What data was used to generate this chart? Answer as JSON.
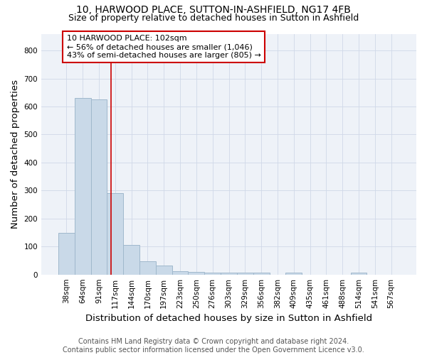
{
  "title1": "10, HARWOOD PLACE, SUTTON-IN-ASHFIELD, NG17 4FB",
  "title2": "Size of property relative to detached houses in Sutton in Ashfield",
  "xlabel": "Distribution of detached houses by size in Sutton in Ashfield",
  "ylabel": "Number of detached properties",
  "footnote": "Contains HM Land Registry data © Crown copyright and database right 2024.\nContains public sector information licensed under the Open Government Licence v3.0.",
  "categories": [
    "38sqm",
    "64sqm",
    "91sqm",
    "117sqm",
    "144sqm",
    "170sqm",
    "197sqm",
    "223sqm",
    "250sqm",
    "276sqm",
    "303sqm",
    "329sqm",
    "356sqm",
    "382sqm",
    "409sqm",
    "435sqm",
    "461sqm",
    "488sqm",
    "514sqm",
    "541sqm",
    "567sqm"
  ],
  "values": [
    148,
    630,
    625,
    290,
    105,
    47,
    32,
    11,
    10,
    8,
    8,
    8,
    6,
    0,
    7,
    0,
    0,
    0,
    8,
    0,
    0
  ],
  "bar_color": "#c9d9e8",
  "bar_edge_color": "#a0b8cc",
  "red_line_x": 2.73,
  "annotation_line1": "10 HARWOOD PLACE: 102sqm",
  "annotation_line2": "← 56% of detached houses are smaller (1,046)",
  "annotation_line3": "43% of semi-detached houses are larger (805) →",
  "annotation_box_color": "#ffffff",
  "annotation_box_edge": "#cc0000",
  "ylim": [
    0,
    860
  ],
  "yticks": [
    0,
    100,
    200,
    300,
    400,
    500,
    600,
    700,
    800
  ],
  "grid_color": "#d0d8e8",
  "background_color": "#eef2f8",
  "title_fontsize": 10,
  "subtitle_fontsize": 9,
  "axis_label_fontsize": 9.5,
  "tick_fontsize": 7.5,
  "footnote_fontsize": 7,
  "annotation_fontsize": 8
}
